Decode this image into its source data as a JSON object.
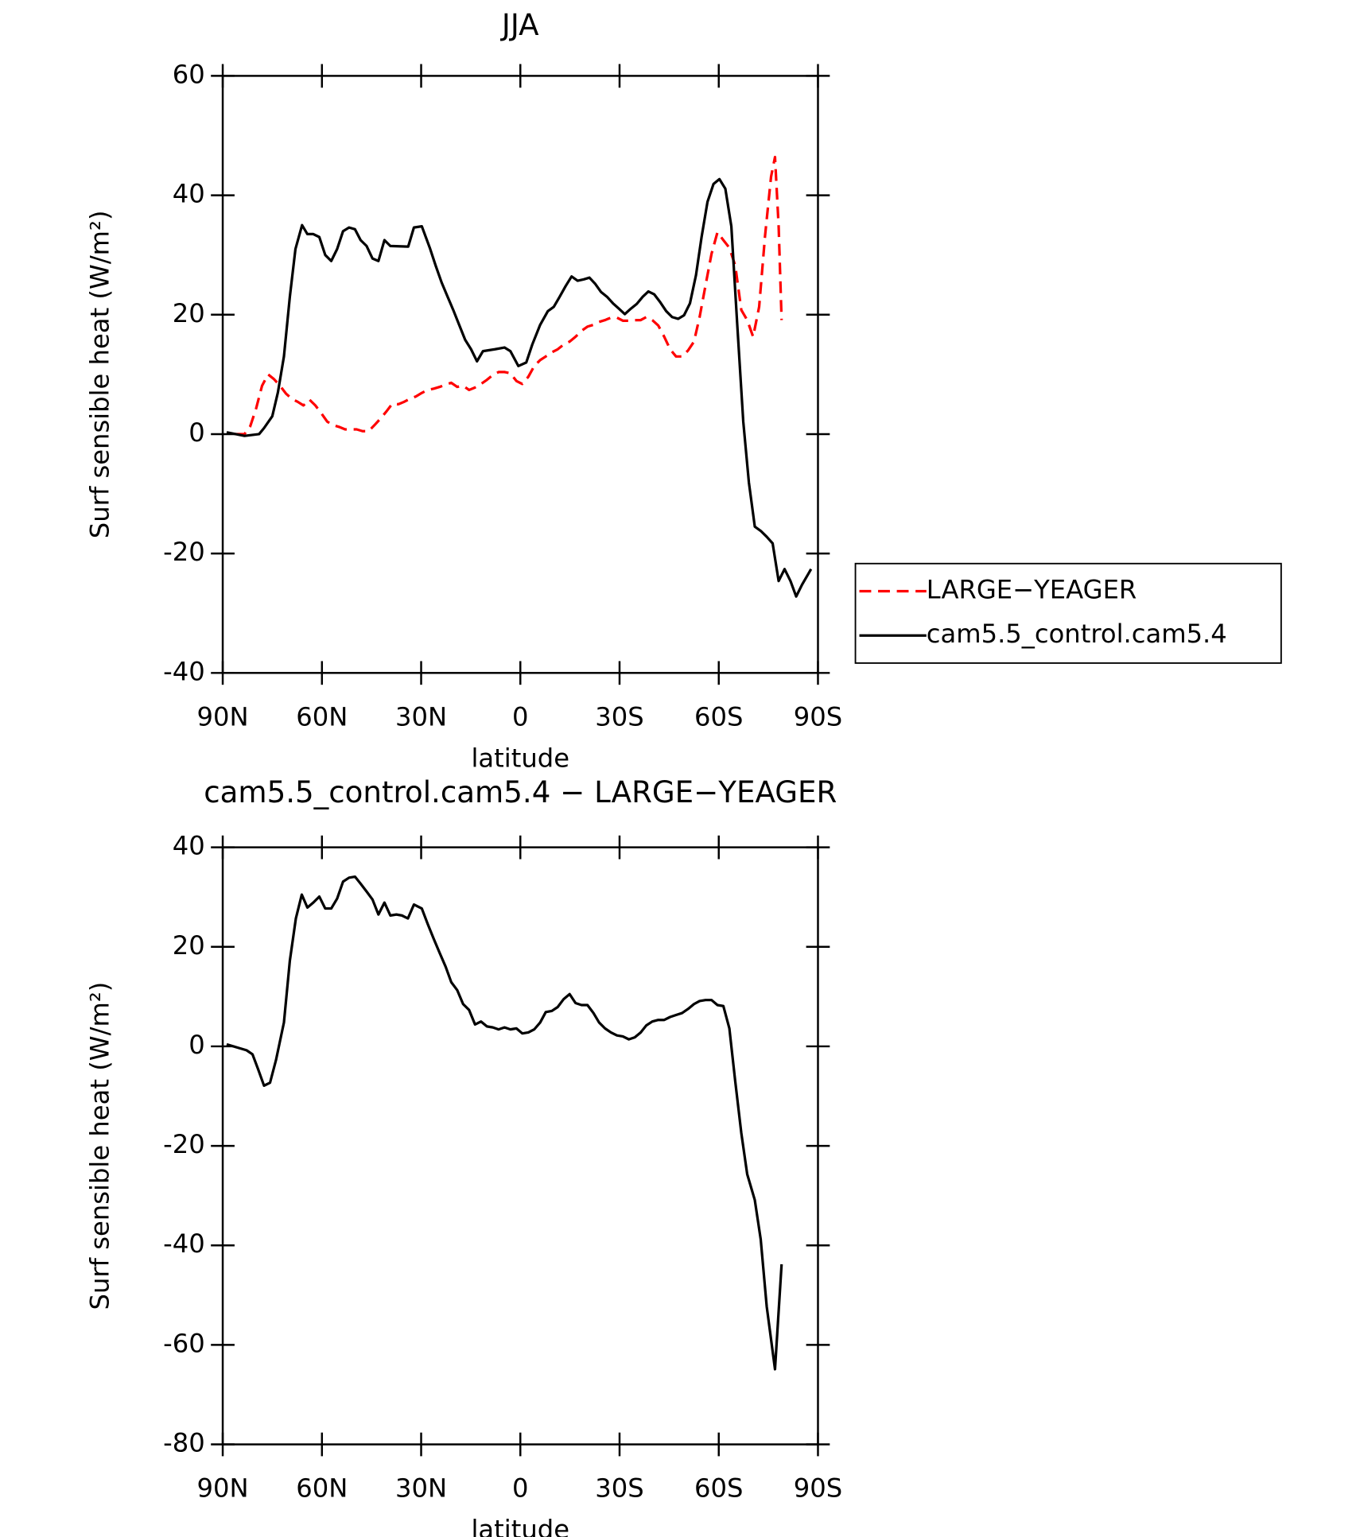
{
  "chart_data": [
    {
      "type": "line",
      "title": "JJA",
      "xlabel": "latitude",
      "ylabel": "Surf sensible heat (W/m²)",
      "xlim": [
        90,
        -90
      ],
      "ylim": [
        -40,
        60
      ],
      "xticks": [
        {
          "value": 90,
          "label": "90N"
        },
        {
          "value": 60,
          "label": "60N"
        },
        {
          "value": 30,
          "label": "30N"
        },
        0,
        {
          "value": -30,
          "label": "30S"
        },
        {
          "value": -60,
          "label": "60S"
        },
        {
          "value": -90,
          "label": "90S"
        }
      ],
      "yticks": [
        -40,
        -20,
        0,
        20,
        40,
        60
      ],
      "legend": "outside-right",
      "series": [
        {
          "name": "LARGE−YEAGER",
          "color": "#ff0000",
          "dash": true,
          "x": [
            86.4,
            83.4,
            81.7,
            79.9,
            78.1,
            76.3,
            74.5,
            72.7,
            70.9,
            69.1,
            67.3,
            65.6,
            63.8,
            62,
            60.2,
            58.4,
            56.6,
            54.8,
            53,
            51.3,
            49.5,
            47.7,
            45.9,
            44.1,
            42.3,
            40.5,
            38.7,
            36.9,
            35.2,
            33.4,
            31.6,
            29.8,
            28,
            26.2,
            24.4,
            22.6,
            20.9,
            19.1,
            17.3,
            15.5,
            13.7,
            11.9,
            10.1,
            8.3,
            6.6,
            4.8,
            3,
            1.2,
            -0.6,
            -2.4,
            -4.2,
            -6,
            -7.7,
            -9.5,
            -11.3,
            -13.1,
            -14.9,
            -16.7,
            -18.5,
            -20.3,
            -22.1,
            -23.8,
            -25.6,
            -27.4,
            -29.2,
            -31,
            -32.8,
            -34.6,
            -36.4,
            -38.1,
            -39.9,
            -41.7,
            -43.5,
            -45.3,
            -47.1,
            -48.9,
            -50.7,
            -52.5,
            -54.2,
            -56,
            -57.8,
            -59.6,
            -61.4,
            -63.2,
            -65,
            -66.8,
            -68.6,
            -70.4,
            -72.2,
            -74,
            -75.8,
            -77,
            -78.1,
            -79
          ],
          "values": [
            0,
            0,
            1.3,
            4.3,
            8.1,
            10,
            9.2,
            8.1,
            6.8,
            5.9,
            5.4,
            4.8,
            5.8,
            4.8,
            3.5,
            2.1,
            1.5,
            1.2,
            0.8,
            0.8,
            0.8,
            0.5,
            0.5,
            1.5,
            2.6,
            3.8,
            5.1,
            5,
            5.4,
            5.9,
            6.3,
            6.9,
            7.4,
            7.6,
            7.9,
            8.3,
            8.6,
            7.9,
            8.1,
            7.4,
            7.8,
            8.4,
            9.1,
            9.9,
            10.4,
            10.4,
            10.2,
            8.9,
            8.4,
            9.6,
            11.4,
            12.4,
            13,
            13.7,
            14.2,
            15,
            15.5,
            16.3,
            17.3,
            18,
            18.3,
            18.8,
            19.1,
            19.5,
            19.5,
            19,
            19,
            19.1,
            19.1,
            19.6,
            19.1,
            18.2,
            16.3,
            14.2,
            13,
            13,
            14,
            15.5,
            19.6,
            24.9,
            30.2,
            33.8,
            32.5,
            31.2,
            28.2,
            20.8,
            19.1,
            16.3,
            21.3,
            33.2,
            43.1,
            46.4,
            34.8,
            19.1
          ]
        },
        {
          "name": "cam5.5_control.cam5.4",
          "color": "#000000",
          "dash": false,
          "x": [
            88.8,
            83.4,
            79,
            77.5,
            75,
            73.3,
            71.5,
            69.7,
            68,
            66,
            64.4,
            62.6,
            60.8,
            59,
            57.2,
            55.4,
            53.6,
            51.8,
            50,
            48.3,
            46.5,
            44.7,
            42.9,
            41.1,
            39.3,
            33.9,
            32.2,
            29.8,
            27.4,
            25.6,
            23.8,
            22,
            20.3,
            18.5,
            16.7,
            14.9,
            13.1,
            11.3,
            7.7,
            4.8,
            3,
            0.6,
            -1.8,
            -3.6,
            -6,
            -8.3,
            -10.1,
            -11.9,
            -13.7,
            -15.5,
            -17.3,
            -19.1,
            -20.9,
            -22.6,
            -24.4,
            -26.2,
            -28,
            -29.8,
            -31.6,
            -33.4,
            -35.2,
            -37,
            -38.7,
            -40.5,
            -42.3,
            -44.1,
            -45.9,
            -47.7,
            -49.5,
            -51.3,
            -53.1,
            -54.8,
            -56.6,
            -58.4,
            -60.2,
            -62,
            -63.8,
            -65.6,
            -67.4,
            -69.1,
            -70.9,
            -72.7,
            -74.5,
            -76.3,
            -78.1,
            -79.9,
            -81.7,
            -83.4,
            -85.2,
            -87.9
          ],
          "values": [
            0.3,
            -0.3,
            0,
            1,
            3,
            7,
            13,
            23,
            31,
            35,
            33.5,
            33.5,
            33,
            30,
            29,
            31,
            34,
            34.6,
            34.3,
            32.5,
            31.5,
            29.4,
            29,
            32.5,
            31.5,
            31.4,
            34.6,
            34.8,
            31.2,
            28.2,
            25.4,
            23,
            20.8,
            18.3,
            15.8,
            14.2,
            12.2,
            13.9,
            14.2,
            14.5,
            13.9,
            11.4,
            12,
            15,
            18.3,
            20.6,
            21.3,
            23,
            24.8,
            26.4,
            25.7,
            25.9,
            26.2,
            25.2,
            23.8,
            23,
            21.9,
            21,
            20.1,
            21,
            21.8,
            23,
            23.9,
            23.4,
            22.1,
            20.6,
            19.6,
            19.3,
            19.9,
            21.9,
            26.6,
            33,
            38.9,
            41.9,
            42.7,
            41.1,
            34.8,
            18.3,
            2.1,
            -8.1,
            -15.5,
            -16.2,
            -17.2,
            -18.3,
            -24.6,
            -22.6,
            -24.6,
            -27.2,
            -25.2,
            -22.6
          ]
        }
      ]
    },
    {
      "type": "line",
      "title": "cam5.5_control.cam5.4 − LARGE−YEAGER",
      "xlabel": "latitude",
      "ylabel": "Surf sensible heat (W/m²)",
      "xlim": [
        90,
        -90
      ],
      "ylim": [
        -80,
        40
      ],
      "xticks": [
        {
          "value": 90,
          "label": "90N"
        },
        {
          "value": 60,
          "label": "60N"
        },
        {
          "value": 30,
          "label": "30N"
        },
        0,
        {
          "value": -30,
          "label": "30S"
        },
        {
          "value": -60,
          "label": "60S"
        },
        {
          "value": -90,
          "label": "90S"
        }
      ],
      "yticks": [
        -80,
        -60,
        -40,
        -20,
        0,
        20,
        40
      ],
      "series": [
        {
          "color": "#000000",
          "dash": false,
          "x": [
            88.8,
            82.8,
            81,
            79.3,
            77.5,
            75.7,
            73.9,
            71.5,
            69.7,
            67.9,
            66.1,
            64.4,
            62.6,
            60.8,
            59,
            57.2,
            55.4,
            53.6,
            51.8,
            50,
            48.3,
            46.5,
            44.7,
            42.9,
            41.1,
            39.3,
            37.5,
            35.8,
            34,
            32.2,
            29.8,
            28,
            26.2,
            24.4,
            22.6,
            20.9,
            19.1,
            17.3,
            15.5,
            13.7,
            11.9,
            10.1,
            8.3,
            6.6,
            4.8,
            3,
            1.2,
            -0.6,
            -2.4,
            -4.2,
            -6,
            -7.7,
            -9.5,
            -11.3,
            -13.1,
            -14.9,
            -16.7,
            -18.5,
            -20.3,
            -22.1,
            -23.8,
            -25.6,
            -27.4,
            -29.2,
            -31,
            -32.8,
            -34.6,
            -36.4,
            -38.1,
            -39.9,
            -41.7,
            -43.5,
            -45.3,
            -47.1,
            -48.9,
            -50.7,
            -52.5,
            -54.2,
            -56,
            -57.8,
            -59.6,
            -61.4,
            -63.2,
            -65,
            -66.8,
            -68.6,
            -70.9,
            -72.7,
            -74.5,
            -77,
            -79
          ],
          "values": [
            0.4,
            -0.8,
            -1.6,
            -4.6,
            -7.9,
            -7.3,
            -2.8,
            4.8,
            17.2,
            25.7,
            30.5,
            27.9,
            28.9,
            30.1,
            27.7,
            27.7,
            29.7,
            33.1,
            33.9,
            34.1,
            32.7,
            31.1,
            29.5,
            26.5,
            28.9,
            26.3,
            26.5,
            26.3,
            25.7,
            28.5,
            27.7,
            24.6,
            21.6,
            18.8,
            16,
            12.9,
            11.3,
            8.5,
            7.3,
            4.4,
            5,
            4,
            3.8,
            3.4,
            3.8,
            3.4,
            3.6,
            2.6,
            2.8,
            3.4,
            4.8,
            6.9,
            7.1,
            7.9,
            9.5,
            10.5,
            8.7,
            8.3,
            8.3,
            6.7,
            4.8,
            3.6,
            2.8,
            2.2,
            2,
            1.4,
            1.8,
            2.8,
            4.2,
            5,
            5.3,
            5.3,
            5.9,
            6.3,
            6.7,
            7.5,
            8.5,
            9.1,
            9.3,
            9.3,
            8.3,
            8.1,
            3.6,
            -7.1,
            -17.4,
            -25.7,
            -30.9,
            -38.8,
            -52.3,
            -64.9,
            -43.8
          ]
        }
      ]
    }
  ]
}
